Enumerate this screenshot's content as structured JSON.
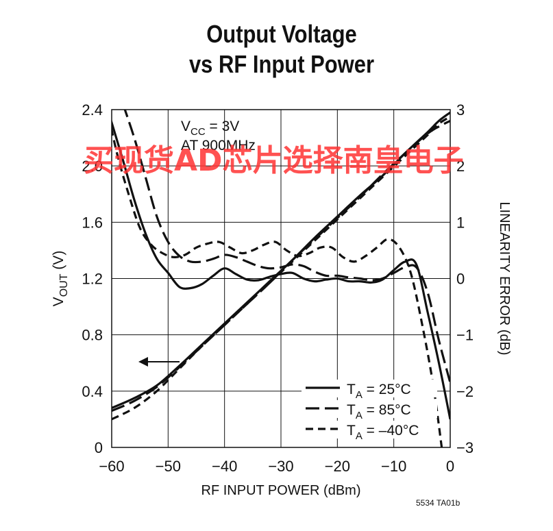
{
  "chart_data": {
    "type": "line",
    "title": [
      "Output Voltage",
      "vs RF Input Power"
    ],
    "xlabel": "RF INPUT POWER (dBm)",
    "ylabel_main": "V",
    "ylabel_sub": "OUT",
    "ylabel_unit": " (V)",
    "y2label": "LINEARITY ERROR (dB)",
    "xlim": [
      -60,
      0
    ],
    "ylim": [
      0,
      2.4
    ],
    "y2lim": [
      -3,
      3
    ],
    "grid": true,
    "x_ticks": [
      -60,
      -50,
      -40,
      -30,
      -20,
      -10,
      0
    ],
    "x_tick_labels": [
      "−60",
      "−50",
      "−40",
      "−30",
      "−20",
      "−10",
      "0"
    ],
    "y_ticks": [
      0,
      0.4,
      0.8,
      1.2,
      1.6,
      2.0,
      2.4
    ],
    "y_tick_labels": [
      "0",
      "0.4",
      "0.8",
      "1.2",
      "1.6",
      "2.0",
      "2.4"
    ],
    "y2_ticks": [
      -3,
      -2,
      -1,
      0,
      1,
      2,
      3
    ],
    "y2_tick_labels": [
      "−3",
      "−2",
      "−1",
      "0",
      "1",
      "2",
      "3"
    ],
    "annotation_vcc_prefix": "V",
    "annotation_vcc_sub": "CC",
    "annotation_vcc_value": " = 3V",
    "annotation_freq": "AT 900MHz",
    "legend": [
      {
        "label_pre": "T",
        "label_sub": "A",
        "label_post": " = 25°C",
        "dash": "solid"
      },
      {
        "label_pre": "T",
        "label_sub": "A",
        "label_post": " = 85°C",
        "dash": "longdash"
      },
      {
        "label_pre": "T",
        "label_sub": "A",
        "label_post": " = –40°C",
        "dash": "shortdash"
      }
    ],
    "series": [
      {
        "name": "25°C",
        "group": "vout",
        "axis": "left",
        "dash": "solid",
        "x": [
          -60,
          -56,
          -52,
          -48,
          -44,
          -40,
          -36,
          -32,
          -28,
          -24,
          -20,
          -16,
          -12,
          -8,
          -4,
          -2,
          0
        ],
        "y": [
          0.28,
          0.35,
          0.44,
          0.58,
          0.73,
          0.88,
          1.03,
          1.18,
          1.33,
          1.49,
          1.64,
          1.79,
          1.93,
          2.09,
          2.24,
          2.32,
          2.38
        ]
      },
      {
        "name": "85°C",
        "group": "vout",
        "axis": "left",
        "dash": "longdash",
        "x": [
          -60,
          -56,
          -52,
          -48,
          -44,
          -40,
          -36,
          -32,
          -28,
          -24,
          -20,
          -16,
          -12,
          -8,
          -4,
          -2,
          0
        ],
        "y": [
          0.26,
          0.33,
          0.43,
          0.57,
          0.72,
          0.87,
          1.02,
          1.17,
          1.33,
          1.48,
          1.63,
          1.78,
          1.94,
          2.09,
          2.23,
          2.28,
          2.32
        ]
      },
      {
        "name": "-40°C",
        "group": "vout",
        "axis": "left",
        "dash": "shortdash",
        "x": [
          -60,
          -56,
          -52,
          -48,
          -44,
          -40,
          -36,
          -32,
          -28,
          -24,
          -20,
          -16,
          -12,
          -8,
          -4,
          -2,
          0
        ],
        "y": [
          0.2,
          0.28,
          0.4,
          0.56,
          0.72,
          0.87,
          1.02,
          1.17,
          1.32,
          1.47,
          1.62,
          1.77,
          1.92,
          2.07,
          2.22,
          2.3,
          2.35
        ]
      },
      {
        "name": "25°C",
        "group": "error",
        "axis": "right",
        "dash": "solid",
        "x": [
          -61,
          -58,
          -56,
          -54,
          -52,
          -50,
          -48,
          -46,
          -44,
          -42,
          -40,
          -38,
          -36,
          -34,
          -32,
          -30,
          -28,
          -26,
          -24,
          -22,
          -20,
          -18,
          -16,
          -14,
          -12,
          -10,
          -8,
          -6,
          -4,
          -2,
          0
        ],
        "y": [
          3.1,
          2.1,
          1.4,
          0.8,
          0.35,
          0.1,
          -0.15,
          -0.17,
          -0.1,
          0.05,
          0.18,
          0.08,
          -0.02,
          -0.03,
          0.03,
          0.08,
          0.1,
          0.0,
          -0.05,
          -0.02,
          0.0,
          -0.05,
          -0.05,
          -0.07,
          -0.02,
          0.15,
          0.3,
          0.25,
          -0.6,
          -1.5,
          -2.5
        ]
      },
      {
        "name": "85°C",
        "group": "error",
        "axis": "right",
        "dash": "longdash",
        "x": [
          -58,
          -56,
          -54,
          -52,
          -50,
          -48,
          -46,
          -44,
          -42,
          -40,
          -38,
          -36,
          -34,
          -32,
          -30,
          -28,
          -26,
          -24,
          -22,
          -20,
          -18,
          -16,
          -14,
          -12,
          -10,
          -8,
          -6,
          -4,
          -2,
          0
        ],
        "y": [
          3.1,
          2.5,
          1.8,
          1.1,
          0.65,
          0.4,
          0.3,
          0.3,
          0.35,
          0.42,
          0.38,
          0.3,
          0.22,
          0.18,
          0.2,
          0.25,
          0.22,
          0.12,
          0.05,
          0.05,
          0.02,
          0.0,
          -0.03,
          0.0,
          0.1,
          0.2,
          0.2,
          -0.25,
          -1.1,
          -1.85
        ]
      },
      {
        "name": "-40°C",
        "group": "error",
        "axis": "right",
        "dash": "shortdash",
        "x": [
          -61,
          -59,
          -57,
          -55,
          -53,
          -51,
          -49,
          -47,
          -45,
          -43,
          -41,
          -39,
          -37,
          -35,
          -33,
          -31,
          -29,
          -27,
          -25,
          -23,
          -21,
          -19,
          -17,
          -15,
          -13,
          -11,
          -9,
          -7,
          -5,
          -3,
          -1.5
        ],
        "y": [
          3.1,
          2.2,
          1.5,
          0.9,
          0.6,
          0.45,
          0.38,
          0.42,
          0.55,
          0.62,
          0.65,
          0.55,
          0.45,
          0.5,
          0.6,
          0.65,
          0.5,
          0.4,
          0.45,
          0.55,
          0.55,
          0.38,
          0.3,
          0.4,
          0.55,
          0.7,
          0.55,
          0.1,
          -0.8,
          -1.9,
          -3.0
        ]
      }
    ]
  },
  "figure_code": "5534 TA01b",
  "watermark": "买现货AD芯片选择南皇电子",
  "colors": {
    "ink": "#111111",
    "watermark": "#ff3333"
  }
}
